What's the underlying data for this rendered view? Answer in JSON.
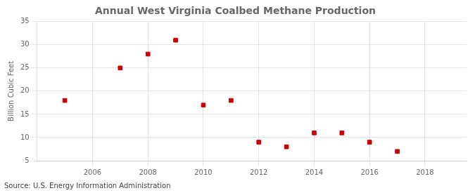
{
  "chart_data": {
    "type": "scatter",
    "title": "Annual West Virginia Coalbed Methane Production",
    "ylabel": "Billion Cubic Feet",
    "annotation": "Source: U.S. Energy Information Administration",
    "x": [
      2005,
      2007,
      2008,
      2009,
      2010,
      2011,
      2012,
      2013,
      2014,
      2015,
      2016,
      2017
    ],
    "values": [
      18.0,
      25.0,
      28.0,
      31.0,
      17.0,
      18.0,
      9.0,
      8.0,
      11.0,
      11.0,
      9.0,
      7.0
    ],
    "xlim": [
      2004.0,
      2019.5
    ],
    "ylim": [
      5,
      35
    ],
    "xticks": [
      2006,
      2008,
      2010,
      2012,
      2014,
      2016,
      2018
    ],
    "yticks": [
      5,
      10,
      15,
      20,
      25,
      30,
      35
    ],
    "color": "#cc0000",
    "marker": "square",
    "grid": true
  }
}
